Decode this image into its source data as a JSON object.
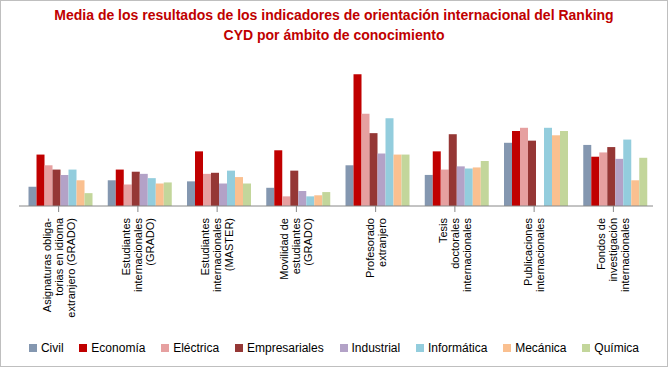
{
  "chart_data": {
    "type": "bar",
    "title": "Media de los resultados de los indicadores de orientación internacional del Ranking CYD por ámbito de conocimiento",
    "categories": [
      "Asignaturas obliga-\ntorias en idioma\nextranjero (GRADO)",
      "Estudiantes\ninternacionales\n(GRADO)",
      "Estudiantes\ninternacionales\n(MASTER)",
      "Movilidad de\nestudiantes\n(GRADO)",
      "Profesorado\nextranjero",
      "Tesis\ndoctorales\ninternacionales",
      "Publicaciones\ninternacionales",
      "Fondos de\ninvestigación\ninternacionales"
    ],
    "series": [
      {
        "name": "Civil",
        "color": "#8497B0",
        "values": [
          0.9,
          1.2,
          1.15,
          0.85,
          1.9,
          1.45,
          2.95,
          2.85
        ]
      },
      {
        "name": "Economía",
        "color": "#C00000",
        "values": [
          2.4,
          1.7,
          2.55,
          2.6,
          6.15,
          2.55,
          3.5,
          2.3
        ]
      },
      {
        "name": "Eléctrica",
        "color": "#E6A0A0",
        "values": [
          1.9,
          1.0,
          1.5,
          0.45,
          4.3,
          1.7,
          3.65,
          2.5
        ]
      },
      {
        "name": "Empresariales",
        "color": "#953735",
        "values": [
          1.7,
          1.6,
          1.55,
          1.65,
          3.4,
          3.35,
          3.05,
          2.75
        ]
      },
      {
        "name": "Industrial",
        "color": "#B3A2C7",
        "values": [
          1.45,
          1.5,
          1.05,
          0.7,
          2.45,
          1.85,
          null,
          2.2
        ]
      },
      {
        "name": "Informática",
        "color": "#93CDDD",
        "values": [
          1.7,
          1.3,
          1.65,
          0.45,
          4.1,
          1.75,
          3.65,
          3.1
        ]
      },
      {
        "name": "Mecánica",
        "color": "#FAC090",
        "values": [
          1.2,
          1.05,
          1.35,
          0.5,
          2.4,
          1.8,
          3.3,
          1.2
        ]
      },
      {
        "name": "Química",
        "color": "#C3D69B",
        "values": [
          0.6,
          1.1,
          1.05,
          0.65,
          2.4,
          2.1,
          3.5,
          2.25
        ]
      }
    ],
    "ylim": [
      0,
      7
    ],
    "yticks": [
      0,
      1,
      2,
      3,
      4,
      5,
      6,
      7
    ],
    "grid": true,
    "tick_labels": false,
    "legend": "bottom"
  }
}
